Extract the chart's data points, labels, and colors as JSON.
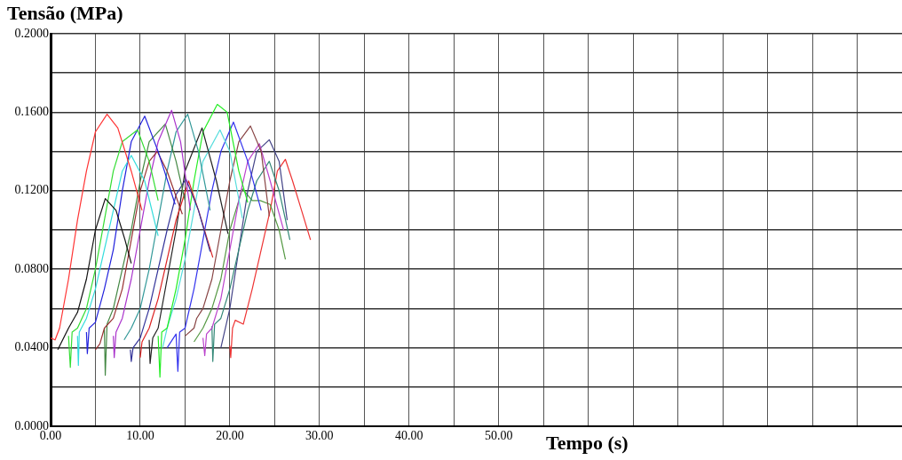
{
  "chart_data": {
    "type": "line",
    "xlabel": "Tempo (s)",
    "ylabel": "Tensão (MPa)",
    "grid": true,
    "legend": false,
    "marker": "none",
    "xlim": [
      0,
      95
    ],
    "ylim": [
      0,
      0.2
    ],
    "xticks": [
      {
        "value": 0,
        "label": "0.00"
      },
      {
        "value": 5,
        "label": null
      },
      {
        "value": 10,
        "label": "10.00"
      },
      {
        "value": 15,
        "label": null
      },
      {
        "value": 20,
        "label": "20.00"
      },
      {
        "value": 25,
        "label": null
      },
      {
        "value": 30,
        "label": "30.00"
      },
      {
        "value": 35,
        "label": null
      },
      {
        "value": 40,
        "label": "40.00"
      },
      {
        "value": 45,
        "label": null
      },
      {
        "value": 50,
        "label": "50.00"
      },
      {
        "value": 55,
        "label": null
      },
      {
        "value": 60,
        "label": null
      },
      {
        "value": 65,
        "label": null
      },
      {
        "value": 70,
        "label": null
      },
      {
        "value": 75,
        "label": null
      },
      {
        "value": 80,
        "label": null
      },
      {
        "value": 85,
        "label": null
      },
      {
        "value": 90,
        "label": null
      }
    ],
    "yticks": [
      {
        "value": 0,
        "label": "0.0000"
      },
      {
        "value": 0.02,
        "label": null
      },
      {
        "value": 0.04,
        "label": "0.0400"
      },
      {
        "value": 0.06,
        "label": null
      },
      {
        "value": 0.08,
        "label": "0.0800"
      },
      {
        "value": 0.1,
        "label": null
      },
      {
        "value": 0.12,
        "label": "0.1200"
      },
      {
        "value": 0.14,
        "label": null
      },
      {
        "value": 0.16,
        "label": "0.1600"
      },
      {
        "value": 0.18,
        "label": null
      },
      {
        "value": 0.2,
        "label": "0.2000"
      }
    ],
    "series": [
      {
        "color": "#ff3333",
        "x": [
          0,
          0.5,
          1,
          2,
          3,
          4,
          5,
          6.3,
          7.5,
          9,
          10.2
        ],
        "values": [
          0.045,
          0.044,
          0.05,
          0.075,
          0.105,
          0.13,
          0.15,
          0.159,
          0.152,
          0.13,
          0.11
        ]
      },
      {
        "color": "#111111",
        "x": [
          0.8,
          2,
          3,
          4,
          5,
          6.1,
          7.3,
          8.3,
          9
        ],
        "values": [
          0.039,
          0.05,
          0.058,
          0.075,
          0.1,
          0.116,
          0.11,
          0.095,
          0.083
        ]
      },
      {
        "color": "#33dd33",
        "x": [
          2,
          2.2,
          2.4,
          3,
          4,
          5,
          6,
          7,
          8,
          9.7,
          11,
          12
        ],
        "values": [
          0.046,
          0.03,
          0.048,
          0.05,
          0.06,
          0.08,
          0.105,
          0.13,
          0.145,
          0.151,
          0.135,
          0.115
        ]
      },
      {
        "color": "#33dddd",
        "x": [
          3,
          3.1,
          3.2,
          4,
          5,
          6,
          7,
          8,
          9,
          10.5,
          12
        ],
        "values": [
          0.046,
          0.031,
          0.048,
          0.055,
          0.07,
          0.09,
          0.11,
          0.13,
          0.138,
          0.125,
          0.097
        ]
      },
      {
        "color": "#2222dd",
        "x": [
          4,
          4.1,
          4.3,
          5,
          6,
          7,
          8,
          9,
          10.5,
          12,
          13.9
        ],
        "values": [
          0.048,
          0.037,
          0.05,
          0.053,
          0.07,
          0.09,
          0.12,
          0.145,
          0.158,
          0.14,
          0.113
        ]
      },
      {
        "color": "#993333",
        "x": [
          5,
          5.5,
          6,
          7,
          8,
          9,
          10,
          11,
          11.9,
          13,
          14.7
        ],
        "values": [
          0.039,
          0.042,
          0.05,
          0.055,
          0.07,
          0.095,
          0.12,
          0.135,
          0.14,
          0.13,
          0.108
        ]
      },
      {
        "color": "#aa33cc",
        "x": [
          7,
          7.1,
          7.3,
          8,
          9,
          10,
          11,
          12,
          13.5,
          14.5,
          15.6
        ],
        "values": [
          0.046,
          0.035,
          0.048,
          0.055,
          0.075,
          0.1,
          0.125,
          0.145,
          0.161,
          0.145,
          0.11
        ]
      },
      {
        "color": "#448844",
        "x": [
          6,
          6.1,
          6.3,
          7,
          8,
          9,
          10,
          11,
          12.8,
          14,
          15
        ],
        "values": [
          0.05,
          0.026,
          0.052,
          0.06,
          0.08,
          0.1,
          0.125,
          0.145,
          0.154,
          0.135,
          0.115
        ]
      },
      {
        "color": "#339999",
        "x": [
          8.2,
          9,
          10,
          11,
          12,
          13,
          14,
          15.3,
          16.5,
          17.8
        ],
        "values": [
          0.044,
          0.05,
          0.06,
          0.08,
          0.105,
          0.13,
          0.15,
          0.159,
          0.14,
          0.11
        ]
      },
      {
        "color": "#333399",
        "x": [
          8.9,
          9,
          9.2,
          10,
          11,
          12,
          13,
          14,
          15.1,
          16.5,
          17.8
        ],
        "values": [
          0.039,
          0.033,
          0.04,
          0.045,
          0.06,
          0.08,
          0.1,
          0.118,
          0.126,
          0.11,
          0.089
        ]
      },
      {
        "color": "#dd2222",
        "x": [
          10,
          10.2,
          11,
          12,
          13,
          14,
          15.4,
          16.5,
          18.1
        ],
        "values": [
          0.035,
          0.043,
          0.05,
          0.065,
          0.085,
          0.105,
          0.125,
          0.11,
          0.086
        ]
      },
      {
        "color": "#222222",
        "x": [
          11,
          11.1,
          11.4,
          12,
          13,
          14,
          15,
          16.9,
          18.5,
          19.8
        ],
        "values": [
          0.044,
          0.032,
          0.045,
          0.05,
          0.075,
          0.1,
          0.13,
          0.152,
          0.125,
          0.098
        ]
      },
      {
        "color": "#22ee22",
        "x": [
          12,
          12.2,
          12.4,
          13,
          14,
          15,
          16,
          17,
          18.6,
          19.7,
          21,
          22
        ],
        "values": [
          0.046,
          0.025,
          0.048,
          0.05,
          0.07,
          0.095,
          0.125,
          0.15,
          0.164,
          0.16,
          0.13,
          0.114
        ]
      },
      {
        "color": "#55dddd",
        "x": [
          12.5,
          13,
          14,
          15,
          16,
          17,
          18.9,
          20,
          21.4
        ],
        "values": [
          0.04,
          0.05,
          0.065,
          0.085,
          0.11,
          0.135,
          0.151,
          0.14,
          0.106
        ]
      },
      {
        "color": "#3333ee",
        "x": [
          13,
          14,
          14.2,
          14.4,
          15,
          16,
          17,
          18,
          19,
          20.4,
          22,
          23.5
        ],
        "values": [
          0.04,
          0.047,
          0.028,
          0.048,
          0.05,
          0.07,
          0.095,
          0.12,
          0.14,
          0.155,
          0.135,
          0.11
        ]
      },
      {
        "color": "#884444",
        "x": [
          15,
          16,
          16.3,
          17,
          18,
          19,
          20,
          21,
          22.3,
          23.5,
          24.4
        ],
        "values": [
          0.046,
          0.05,
          0.055,
          0.06,
          0.075,
          0.1,
          0.125,
          0.145,
          0.153,
          0.14,
          0.107
        ]
      },
      {
        "color": "#bb44cc",
        "x": [
          17,
          17.2,
          17.4,
          18,
          19,
          20,
          21,
          22,
          23.3,
          24.5,
          26
        ],
        "values": [
          0.045,
          0.036,
          0.047,
          0.05,
          0.065,
          0.09,
          0.115,
          0.135,
          0.144,
          0.125,
          0.1
        ]
      },
      {
        "color": "#338877",
        "x": [
          18,
          18.1,
          18.3,
          19,
          20,
          21,
          22,
          23,
          24.4,
          25.5,
          26.7
        ],
        "values": [
          0.051,
          0.033,
          0.052,
          0.055,
          0.07,
          0.09,
          0.11,
          0.125,
          0.135,
          0.12,
          0.095
        ]
      },
      {
        "color": "#444488",
        "x": [
          19,
          20,
          21,
          22,
          23,
          24.4,
          25.5,
          26.4
        ],
        "values": [
          0.04,
          0.06,
          0.09,
          0.12,
          0.14,
          0.146,
          0.135,
          0.105
        ]
      },
      {
        "color": "#559944",
        "x": [
          16,
          17,
          18,
          19,
          20,
          21.4,
          22.5,
          23.4,
          24.5,
          25.5,
          26.2
        ],
        "values": [
          0.043,
          0.05,
          0.06,
          0.075,
          0.1,
          0.121,
          0.115,
          0.115,
          0.113,
          0.1,
          0.085
        ]
      },
      {
        "color": "#ee3333",
        "x": [
          20,
          20.1,
          20.3,
          20.6,
          21.5,
          22.5,
          23.5,
          24.5,
          25.3,
          26.2,
          27,
          28,
          29
        ],
        "values": [
          0.041,
          0.035,
          0.05,
          0.054,
          0.052,
          0.07,
          0.09,
          0.11,
          0.13,
          0.136,
          0.125,
          0.11,
          0.095
        ]
      }
    ]
  }
}
